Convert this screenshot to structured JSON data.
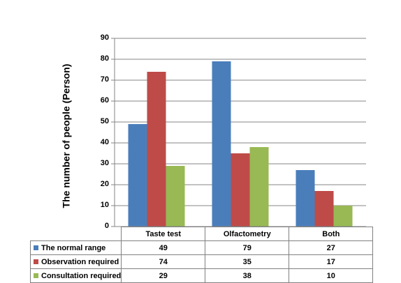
{
  "chart_data": {
    "type": "bar",
    "title": "",
    "xlabel": "",
    "ylabel": "The number of people (Person)",
    "ylim": [
      0,
      90
    ],
    "yticks": [
      0,
      10,
      20,
      30,
      40,
      50,
      60,
      70,
      80,
      90
    ],
    "grid": true,
    "categories": [
      "Taste test",
      "Olfactometry",
      "Both"
    ],
    "series": [
      {
        "name": "The normal range",
        "color": "#4a7ebb",
        "values": [
          49,
          79,
          27
        ]
      },
      {
        "name": "Observation required",
        "color": "#be4b48",
        "values": [
          74,
          35,
          17
        ]
      },
      {
        "name": "Consultation required",
        "color": "#98b954",
        "values": [
          29,
          38,
          10
        ]
      }
    ],
    "legend": "data-table"
  }
}
